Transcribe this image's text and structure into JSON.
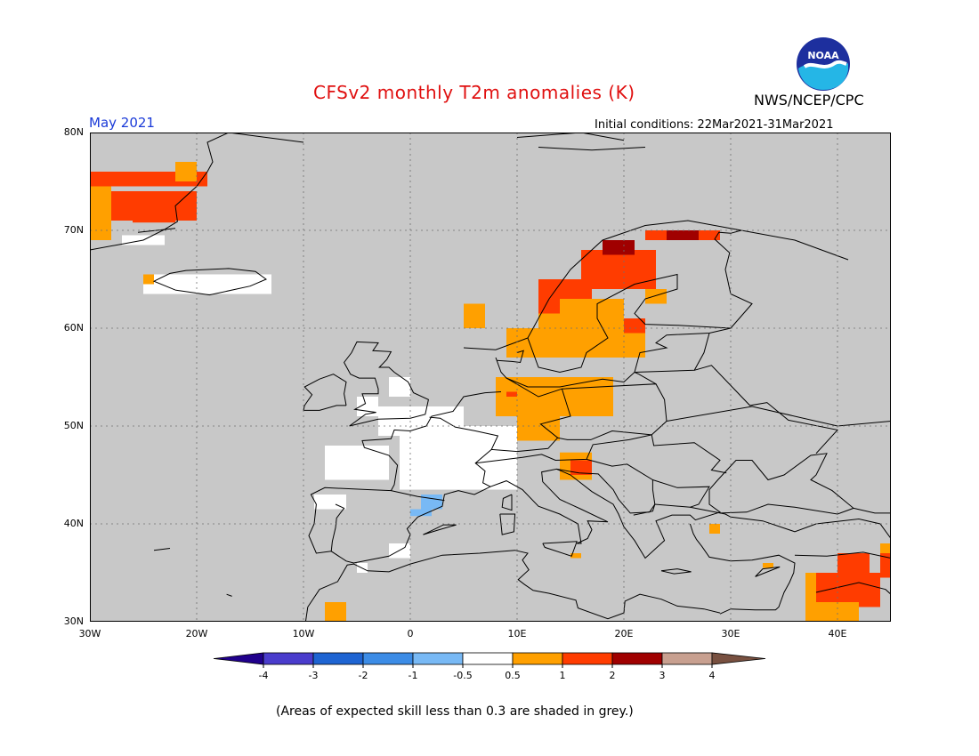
{
  "header": {
    "title": "CFSv2 monthly T2m anomalies (K)",
    "month": "May 2021",
    "initial_conditions": "Initial conditions: 22Mar2021-31Mar2021",
    "agency": "NWS/NCEP/CPC",
    "logo_text": "NOAA"
  },
  "map": {
    "projection": "lat-lon",
    "lon_range": [
      -30,
      45
    ],
    "lat_range": [
      30,
      80
    ],
    "lat_labels": [
      "80N",
      "70N",
      "60N",
      "50N",
      "40N",
      "30N"
    ],
    "lon_labels": [
      "30W",
      "20W",
      "10W",
      "0",
      "10E",
      "20E",
      "30E",
      "40E"
    ],
    "background_color": "#c8c8c8",
    "gridlines": "dotted"
  },
  "legend": {
    "ticks": [
      "-4",
      "-3",
      "-2",
      "-1",
      "-0.5",
      "0.5",
      "1",
      "2",
      "3",
      "4"
    ],
    "colors": [
      "#20008c",
      "#4a3ccc",
      "#1e64d2",
      "#3c8ce6",
      "#78b9f5",
      "#ffffff",
      "#ffa000",
      "#ff3c00",
      "#a00000",
      "#c8a090",
      "#785040"
    ]
  },
  "footnote": "(Areas of expected skill less than 0.3 are shaded in grey.)"
}
